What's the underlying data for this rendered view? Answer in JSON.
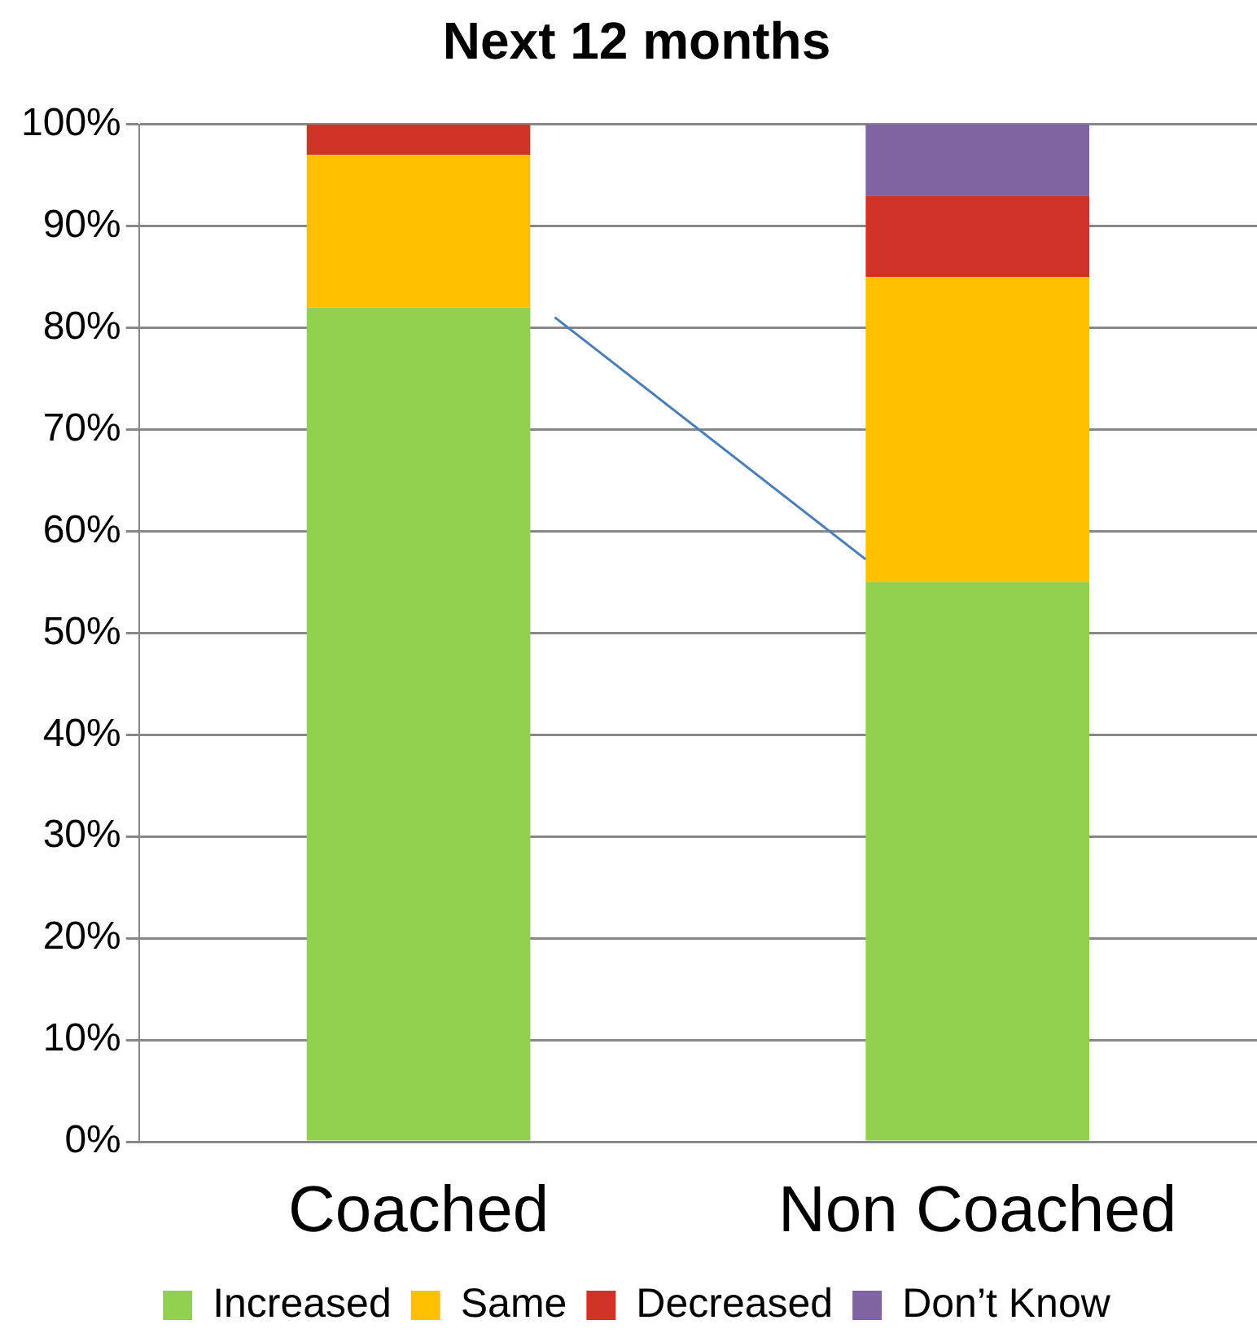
{
  "chart_data": {
    "type": "bar",
    "title": "Next 12 months",
    "categories": [
      "Coached",
      "Non Coached"
    ],
    "stacked": true,
    "series": [
      {
        "name": "Increased",
        "color": "#92d050",
        "values": [
          82,
          55
        ]
      },
      {
        "name": "Same",
        "color": "#ffc000",
        "values": [
          15,
          30
        ]
      },
      {
        "name": "Decreased",
        "color": "#d13228",
        "values": [
          3,
          8
        ]
      },
      {
        "name": "Don’t Know",
        "color": "#8064a2",
        "values": [
          0,
          7
        ]
      }
    ],
    "ylim": [
      0,
      100
    ],
    "yticks": [
      {
        "value": 0,
        "label": "0%"
      },
      {
        "value": 10,
        "label": "10%"
      },
      {
        "value": 20,
        "label": "20%"
      },
      {
        "value": 30,
        "label": "30%"
      },
      {
        "value": 40,
        "label": "40%"
      },
      {
        "value": 50,
        "label": "50%"
      },
      {
        "value": 60,
        "label": "60%"
      },
      {
        "value": 70,
        "label": "70%"
      },
      {
        "value": 80,
        "label": "80%"
      },
      {
        "value": 90,
        "label": "90%"
      },
      {
        "value": 100,
        "label": "100%"
      }
    ],
    "grid": "y",
    "legend": "bottom"
  }
}
